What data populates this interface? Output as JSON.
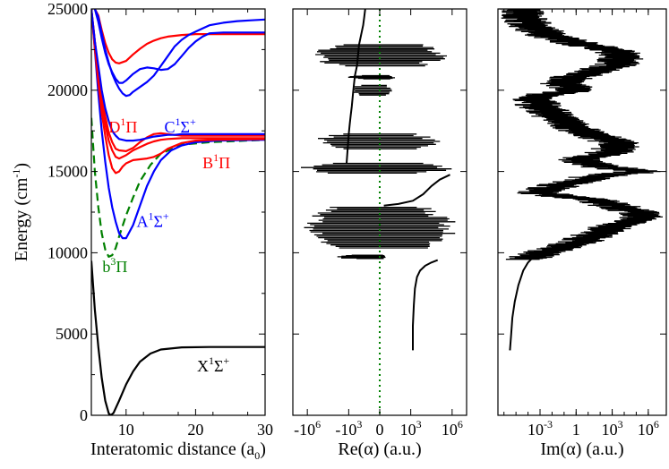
{
  "chart_data": [
    {
      "type": "line",
      "panel": "potential-energy-curves",
      "xlabel": "Interatomic distance (a",
      "xlabel_sub": "0",
      "xlabel_end": ")",
      "ylabel": "Energy (cm",
      "ylabel_sup": "-1",
      "ylabel_end": ")",
      "xlim": [
        5,
        30
      ],
      "ylim": [
        0,
        25000
      ],
      "xticks": [
        10,
        20,
        30
      ],
      "yticks": [
        0,
        5000,
        10000,
        15000,
        20000,
        25000
      ],
      "series": [
        {
          "name": "X1Sigma+",
          "color": "#000000",
          "dashed": false,
          "x": [
            5.0,
            5.5,
            6.0,
            6.5,
            7.0,
            7.5,
            7.8,
            8.2,
            9.0,
            10.0,
            11.0,
            12.0,
            13.5,
            15.0,
            18.0,
            22.0,
            30.0
          ],
          "y": [
            9500,
            6500,
            4200,
            2300,
            900,
            120,
            0,
            150,
            900,
            1900,
            2700,
            3300,
            3800,
            4050,
            4180,
            4200,
            4200
          ]
        },
        {
          "name": "b3Pi",
          "color": "#008000",
          "dashed": true,
          "x": [
            5.0,
            5.5,
            6.0,
            6.5,
            7.0,
            7.5,
            8.0,
            8.5,
            9.0,
            10.0,
            11.0,
            12.0,
            13.5,
            15.0,
            18.0,
            22.0,
            30.0
          ],
          "y": [
            18300,
            15000,
            12800,
            11200,
            10200,
            9750,
            9850,
            10300,
            11000,
            12300,
            13400,
            14400,
            15400,
            16100,
            16650,
            16800,
            16950
          ]
        },
        {
          "name": "A1Sigma+",
          "color": "#0000ff",
          "dashed": false,
          "x": [
            5.0,
            5.5,
            6.0,
            6.5,
            7.0,
            7.5,
            8.0,
            8.5,
            9.0,
            9.5,
            10.0,
            11.0,
            12.0,
            13.0,
            14.0,
            15.0,
            16.5,
            18.0,
            20.0,
            23.0,
            30.0
          ],
          "y": [
            25000,
            22500,
            19800,
            17500,
            15600,
            14000,
            12800,
            11900,
            11200,
            10900,
            10900,
            11700,
            12900,
            14100,
            15000,
            15700,
            16300,
            16600,
            16800,
            16900,
            16950
          ]
        },
        {
          "name": "B1Pi",
          "color": "#ff0000",
          "dashed": false,
          "x": [
            5.0,
            5.5,
            6.0,
            6.5,
            7.0,
            7.5,
            8.0,
            8.5,
            9.0,
            9.5,
            10.0,
            11.0,
            12.0,
            13.0,
            14.0,
            15.0,
            16.0,
            18.0,
            20.0,
            23.0,
            30.0
          ],
          "y": [
            25000,
            22600,
            20500,
            18600,
            17200,
            16000,
            15200,
            14900,
            15000,
            15300,
            15500,
            15700,
            15750,
            15800,
            15900,
            16100,
            16400,
            16750,
            16900,
            16950,
            17000
          ]
        },
        {
          "name": "B1Pi-upper",
          "color": "#ff0000",
          "dashed": false,
          "x": [
            5.0,
            5.5,
            6.0,
            6.5,
            7.0,
            7.5,
            8.0,
            8.5,
            9.0,
            10.0,
            11.0,
            12.0,
            13.0,
            14.0,
            15.0,
            16.0,
            18.0,
            20.0,
            23.0,
            30.0
          ],
          "y": [
            25000,
            23000,
            21000,
            19300,
            17900,
            16900,
            16300,
            15900,
            15800,
            16000,
            16300,
            16500,
            16700,
            16850,
            16950,
            17000,
            17050,
            17050,
            17050,
            17050
          ]
        },
        {
          "name": "D1Pi",
          "color": "#ff0000",
          "dashed": false,
          "x": [
            5.0,
            5.5,
            6.0,
            6.5,
            7.0,
            7.5,
            8.0,
            8.5,
            9.0,
            10.0,
            11.0,
            12.0,
            13.0,
            14.0,
            15.0,
            16.0,
            17.0,
            18.0,
            20.0,
            23.0,
            30.0
          ],
          "y": [
            25000,
            23000,
            21200,
            19600,
            18400,
            17400,
            16800,
            16400,
            16300,
            16250,
            16450,
            16800,
            17100,
            17300,
            17350,
            17300,
            17250,
            17200,
            17200,
            17200,
            17200
          ]
        },
        {
          "name": "C1Sigma+",
          "color": "#0000ff",
          "dashed": false,
          "x": [
            5.0,
            5.5,
            6.0,
            6.5,
            7.0,
            7.5,
            8.0,
            8.5,
            9.0,
            10.0,
            11.0,
            12.0,
            13.0,
            14.0,
            15.0,
            16.0,
            17.0,
            18.0,
            20.0,
            23.0,
            30.0
          ],
          "y": [
            25000,
            23000,
            21500,
            20000,
            18900,
            18100,
            17500,
            17200,
            17000,
            16900,
            16900,
            16950,
            17050,
            17150,
            17200,
            17250,
            17250,
            17300,
            17300,
            17300,
            17300
          ]
        },
        {
          "name": "upper-red-1",
          "color": "#ff0000",
          "dashed": false,
          "x": [
            5.5,
            6.0,
            6.5,
            7.0,
            7.5,
            8.0,
            8.5,
            9.0,
            10.0,
            11.0,
            12.0,
            13.0,
            14.0,
            15.0,
            16.0,
            18.0,
            20.0,
            22.0,
            25.0,
            30.0
          ],
          "y": [
            25000,
            24600,
            23700,
            22900,
            22300,
            21900,
            21700,
            21650,
            21800,
            22200,
            22550,
            22850,
            23050,
            23200,
            23300,
            23400,
            23450,
            23450,
            23450,
            23450
          ]
        },
        {
          "name": "upper-blue-1",
          "color": "#0000ff",
          "dashed": false,
          "x": [
            5.5,
            6.0,
            6.5,
            7.0,
            7.5,
            8.0,
            8.5,
            9.0,
            9.5,
            10.0,
            11.0,
            12.0,
            13.0,
            14.0,
            15.0,
            16.0,
            17.0,
            18.0,
            19.0,
            20.0,
            21.0,
            22.0,
            24.0,
            27.0,
            30.0
          ],
          "y": [
            25000,
            24200,
            23200,
            22300,
            21600,
            21100,
            20700,
            20450,
            20450,
            20600,
            21000,
            21300,
            21400,
            21350,
            21250,
            21300,
            21600,
            22100,
            22600,
            23000,
            23300,
            23500,
            23550,
            23550,
            23550
          ]
        },
        {
          "name": "upper-blue-2",
          "color": "#0000ff",
          "dashed": false,
          "x": [
            5.5,
            6.0,
            6.5,
            7.0,
            7.5,
            8.0,
            8.5,
            9.0,
            9.5,
            10.0,
            10.5,
            11.0,
            12.0,
            13.0,
            14.0,
            15.0,
            16.0,
            17.0,
            18.0,
            19.0,
            20.0,
            21.0,
            22.0,
            24.0,
            26.0,
            28.0,
            30.0
          ],
          "y": [
            25000,
            24500,
            23500,
            22500,
            21700,
            21000,
            20500,
            20100,
            19800,
            19650,
            19700,
            19900,
            20200,
            20500,
            20900,
            21500,
            22100,
            22700,
            23100,
            23400,
            23600,
            23800,
            24000,
            24150,
            24250,
            24300,
            24350
          ]
        }
      ],
      "annotations": [
        {
          "id": "x1sigma",
          "color": "#000000",
          "x": 20.2,
          "y": 2700,
          "letter": "X",
          "sup": "1",
          "after": "Σ",
          "sup2": "+"
        },
        {
          "id": "b3pi",
          "color": "#008000",
          "x": 6.6,
          "y": 8800,
          "letter": "b",
          "sup": "3",
          "after": "Π",
          "sup2": ""
        },
        {
          "id": "a1sigma",
          "color": "#0000ff",
          "x": 11.5,
          "y": 11600,
          "letter": "A",
          "sup": "1",
          "after": "Σ",
          "sup2": "+"
        },
        {
          "id": "b1pi",
          "color": "#ff0000",
          "x": 21.0,
          "y": 15200,
          "letter": "B",
          "sup": "1",
          "after": "Π",
          "sup2": ""
        },
        {
          "id": "d1pi",
          "color": "#ff0000",
          "x": 7.5,
          "y": 17400,
          "letter": "D",
          "sup": "1",
          "after": "Π",
          "sup2": ""
        },
        {
          "id": "c1sigma",
          "color": "#0000ff",
          "x": 15.5,
          "y": 17400,
          "letter": "C",
          "sup": "1",
          "after": "Σ",
          "sup2": "+"
        }
      ]
    },
    {
      "type": "line",
      "panel": "real-polarizability",
      "xlabel": "Re(α) (a.u.)",
      "ylim": [
        0,
        25000
      ],
      "xticks": [
        {
          "pos": -3.5,
          "base": "-10",
          "exp": "6"
        },
        {
          "pos": -1.5,
          "base": "-10",
          "exp": "3"
        },
        {
          "pos": 0,
          "base": "0",
          "exp": ""
        },
        {
          "pos": 1.5,
          "base": "10",
          "exp": "3"
        },
        {
          "pos": 3.5,
          "base": "10",
          "exp": "6"
        }
      ],
      "zero_line_color": "#008000",
      "noise_bands": [
        {
          "from": 9650,
          "to": 9850,
          "left": -2.3,
          "right": 0.3
        },
        {
          "from": 10300,
          "to": 12800,
          "left": -3.8,
          "right": 3.8
        },
        {
          "from": 14900,
          "to": 15500,
          "left": -3.9,
          "right": 3.9
        },
        {
          "from": 16400,
          "to": 17300,
          "left": -3.3,
          "right": 3.0
        },
        {
          "from": 19700,
          "to": 20300,
          "left": -1.6,
          "right": 0.6
        },
        {
          "from": 20700,
          "to": 20900,
          "left": -1.6,
          "right": 0.8
        },
        {
          "from": 21500,
          "to": 22800,
          "left": -3.4,
          "right": 3.4
        }
      ],
      "curves": [
        {
          "id": "re-low",
          "x": [
            1.6,
            1.6,
            1.65,
            1.7,
            1.8,
            1.95,
            2.2,
            2.5,
            2.8
          ],
          "y": [
            4000,
            5500,
            6800,
            7800,
            8500,
            8900,
            9200,
            9400,
            9550
          ]
        },
        {
          "id": "re-mid",
          "x": [
            0.2,
            0.9,
            1.6,
            2.1,
            2.5,
            2.9,
            3.4
          ],
          "y": [
            12900,
            13000,
            13200,
            13600,
            14100,
            14500,
            14800
          ]
        },
        {
          "id": "re-high",
          "x": [
            -1.6,
            -1.55,
            -1.5,
            -1.45,
            -1.4,
            -1.35,
            -1.3,
            -1.25,
            -1.2,
            -1.1,
            -1.0,
            -0.9,
            -0.8,
            -0.75,
            -0.7
          ],
          "y": [
            15500,
            16400,
            17300,
            17900,
            18500,
            19000,
            19700,
            20300,
            20900,
            21500,
            22800,
            23400,
            24000,
            24500,
            25000
          ]
        }
      ]
    },
    {
      "type": "line",
      "panel": "imaginary-polarizability",
      "xlabel": "Im(α) (a.u.)",
      "ylim": [
        0,
        25000
      ],
      "xticks": [
        {
          "pos": -3,
          "base": "10",
          "exp": "-3"
        },
        {
          "pos": 0,
          "base": "1",
          "exp": ""
        },
        {
          "pos": 3,
          "base": "10",
          "exp": "3"
        },
        {
          "pos": 6,
          "base": "10",
          "exp": "6"
        }
      ],
      "envelope_y": [
        9600,
        9800,
        10000,
        10400,
        10800,
        11300,
        11800,
        12300,
        12800,
        13300,
        13700,
        14200,
        14700,
        15000,
        15300,
        15700,
        16200,
        16700,
        17200,
        17700,
        18200,
        18700,
        19200,
        19600,
        20000,
        20400,
        20800,
        21200,
        21600,
        22000,
        22400,
        22800,
        23200,
        23600,
        24000,
        24400,
        24800,
        25000
      ],
      "envelope_x": [
        -3.6,
        -2.5,
        -2.0,
        -0.3,
        1.5,
        3.0,
        4.5,
        6.6,
        4.5,
        1.8,
        -2.6,
        -0.2,
        2.5,
        6.4,
        3.0,
        0.8,
        3.8,
        4.5,
        2.6,
        0.5,
        -0.6,
        -1.5,
        -2.4,
        -2.8,
        0.8,
        -0.3,
        0.6,
        2.5,
        4.2,
        4.8,
        4.0,
        1.5,
        -0.8,
        -2.0,
        -3.0,
        -3.4,
        -3.6,
        -3.8
      ],
      "base_curve_x": [
        -5.5,
        -5.4,
        -5.3,
        -5.1,
        -4.8,
        -4.4,
        -4.0,
        -3.6
      ],
      "base_curve_y": [
        4000,
        5000,
        6000,
        7000,
        8000,
        8900,
        9400,
        9700
      ]
    }
  ]
}
